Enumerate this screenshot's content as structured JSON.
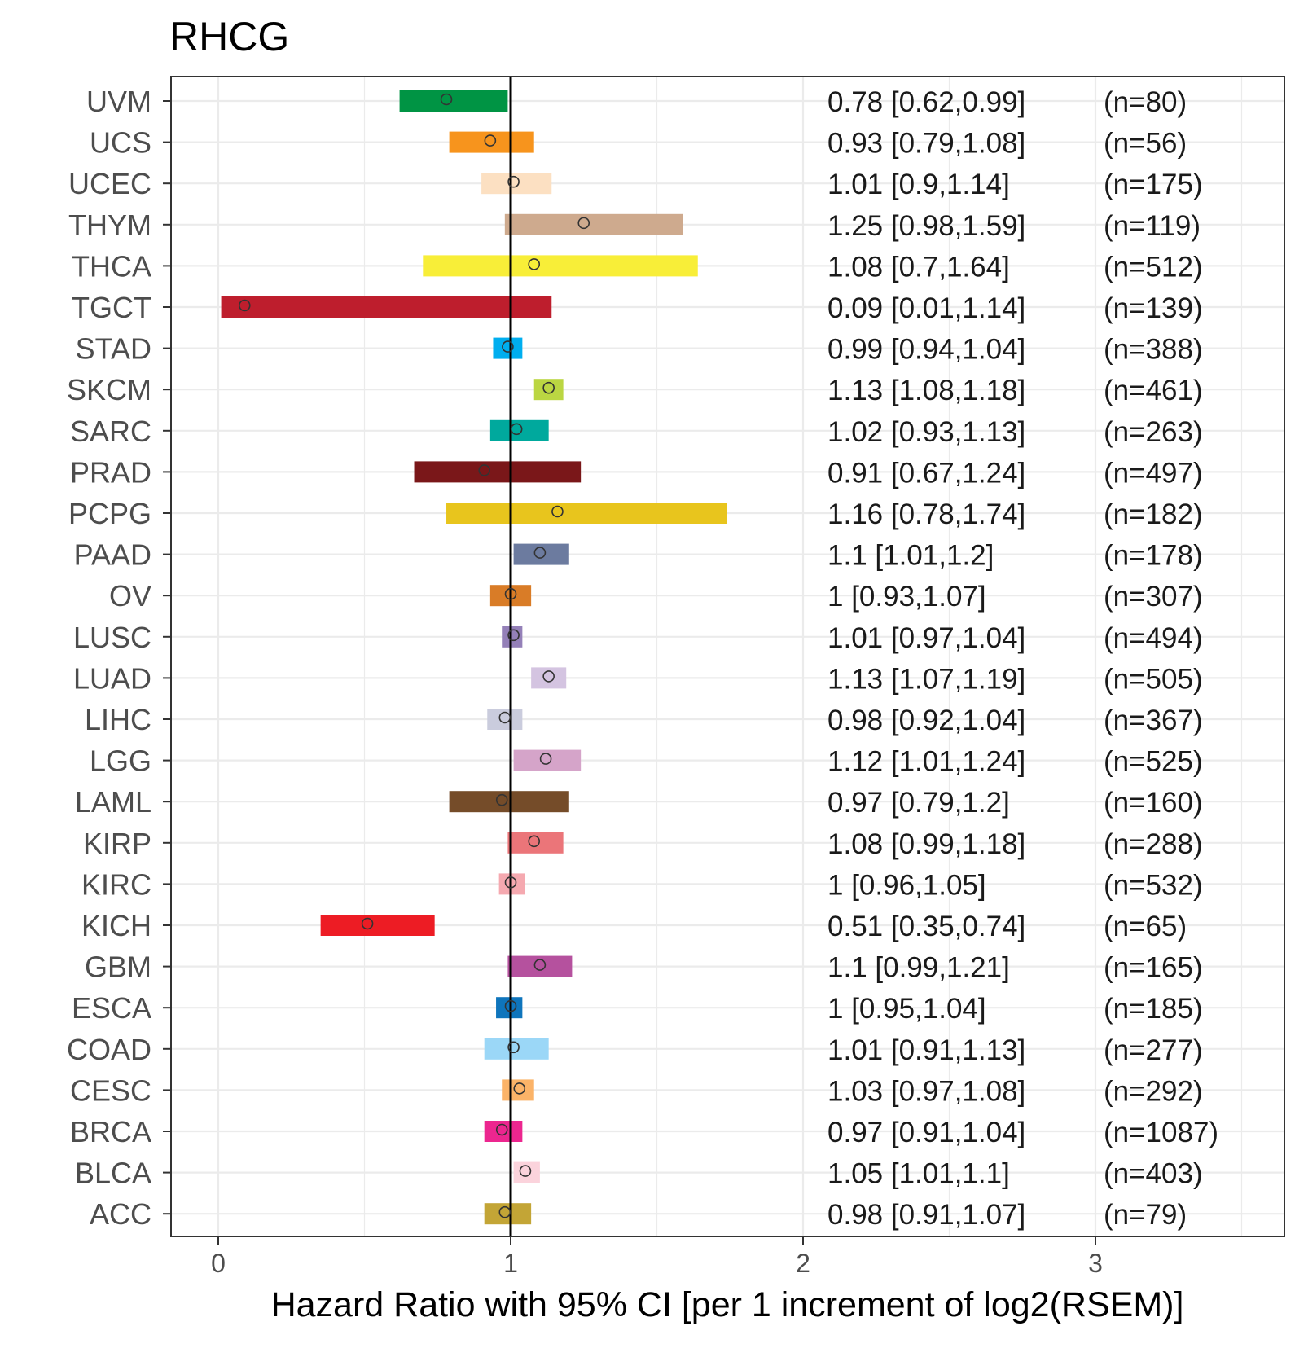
{
  "chart_data": {
    "type": "forest",
    "title": "RHCG",
    "xlabel": "Hazard Ratio with 95% CI [per 1 increment of log2(RSEM)]",
    "ylabel": "",
    "xlim": [
      -0.17,
      3.5
    ],
    "x_ticks": [
      0,
      1,
      2,
      3
    ],
    "x_tick_labels": [
      "0",
      "1",
      "2",
      "3"
    ],
    "reference_line": 1,
    "grid": true,
    "legend": "none",
    "rows": [
      {
        "label": "UVM",
        "hr": 0.78,
        "lower": 0.62,
        "upper": 0.99,
        "ci_text": "0.78 [0.62,0.99]",
        "n_text": "(n=80)",
        "color": "#009444"
      },
      {
        "label": "UCS",
        "hr": 0.93,
        "lower": 0.79,
        "upper": 1.08,
        "ci_text": "0.93 [0.79,1.08]",
        "n_text": "(n=56)",
        "color": "#F7941D"
      },
      {
        "label": "UCEC",
        "hr": 1.01,
        "lower": 0.9,
        "upper": 1.14,
        "ci_text": "1.01 [0.9,1.14]",
        "n_text": "(n=175)",
        "color": "#FCE0C2"
      },
      {
        "label": "THYM",
        "hr": 1.25,
        "lower": 0.98,
        "upper": 1.59,
        "ci_text": "1.25 [0.98,1.59]",
        "n_text": "(n=119)",
        "color": "#CEAA8E"
      },
      {
        "label": "THCA",
        "hr": 1.08,
        "lower": 0.7,
        "upper": 1.64,
        "ci_text": "1.08 [0.7,1.64]",
        "n_text": "(n=512)",
        "color": "#F8EE38"
      },
      {
        "label": "TGCT",
        "hr": 0.09,
        "lower": 0.01,
        "upper": 1.14,
        "ci_text": "0.09 [0.01,1.14]",
        "n_text": "(n=139)",
        "color": "#BE1E2D"
      },
      {
        "label": "STAD",
        "hr": 0.99,
        "lower": 0.94,
        "upper": 1.04,
        "ci_text": "0.99 [0.94,1.04]",
        "n_text": "(n=388)",
        "color": "#00AEEF"
      },
      {
        "label": "SKCM",
        "hr": 1.13,
        "lower": 1.08,
        "upper": 1.18,
        "ci_text": "1.13 [1.08,1.18]",
        "n_text": "(n=461)",
        "color": "#BBD642"
      },
      {
        "label": "SARC",
        "hr": 1.02,
        "lower": 0.93,
        "upper": 1.13,
        "ci_text": "1.02 [0.93,1.13]",
        "n_text": "(n=263)",
        "color": "#00A99D"
      },
      {
        "label": "PRAD",
        "hr": 0.91,
        "lower": 0.67,
        "upper": 1.24,
        "ci_text": "0.91 [0.67,1.24]",
        "n_text": "(n=497)",
        "color": "#7A1719"
      },
      {
        "label": "PCPG",
        "hr": 1.16,
        "lower": 0.78,
        "upper": 1.74,
        "ci_text": "1.16 [0.78,1.74]",
        "n_text": "(n=182)",
        "color": "#E8C51D"
      },
      {
        "label": "PAAD",
        "hr": 1.1,
        "lower": 1.01,
        "upper": 1.2,
        "ci_text": "1.1 [1.01,1.2]",
        "n_text": "(n=178)",
        "color": "#6C7B9F"
      },
      {
        "label": "OV",
        "hr": 1,
        "lower": 0.93,
        "upper": 1.07,
        "ci_text": "1 [0.93,1.07]",
        "n_text": "(n=307)",
        "color": "#D97C27"
      },
      {
        "label": "LUSC",
        "hr": 1.01,
        "lower": 0.97,
        "upper": 1.04,
        "ci_text": "1.01 [0.97,1.04]",
        "n_text": "(n=494)",
        "color": "#9480B8"
      },
      {
        "label": "LUAD",
        "hr": 1.13,
        "lower": 1.07,
        "upper": 1.19,
        "ci_text": "1.13 [1.07,1.19]",
        "n_text": "(n=505)",
        "color": "#D4C4E1"
      },
      {
        "label": "LIHC",
        "hr": 0.98,
        "lower": 0.92,
        "upper": 1.04,
        "ci_text": "0.98 [0.92,1.04]",
        "n_text": "(n=367)",
        "color": "#CACCDD"
      },
      {
        "label": "LGG",
        "hr": 1.12,
        "lower": 1.01,
        "upper": 1.24,
        "ci_text": "1.12 [1.01,1.24]",
        "n_text": "(n=525)",
        "color": "#D5A4C9"
      },
      {
        "label": "LAML",
        "hr": 0.97,
        "lower": 0.79,
        "upper": 1.2,
        "ci_text": "0.97 [0.79,1.2]",
        "n_text": "(n=160)",
        "color": "#754C29"
      },
      {
        "label": "KIRP",
        "hr": 1.08,
        "lower": 0.99,
        "upper": 1.18,
        "ci_text": "1.08 [0.99,1.18]",
        "n_text": "(n=288)",
        "color": "#EB7579"
      },
      {
        "label": "KIRC",
        "hr": 1,
        "lower": 0.96,
        "upper": 1.05,
        "ci_text": "1 [0.96,1.05]",
        "n_text": "(n=532)",
        "color": "#F5A9B0"
      },
      {
        "label": "KICH",
        "hr": 0.51,
        "lower": 0.35,
        "upper": 0.74,
        "ci_text": "0.51 [0.35,0.74]",
        "n_text": "(n=65)",
        "color": "#ED1C24"
      },
      {
        "label": "GBM",
        "hr": 1.1,
        "lower": 0.99,
        "upper": 1.21,
        "ci_text": "1.1 [0.99,1.21]",
        "n_text": "(n=165)",
        "color": "#B5519E"
      },
      {
        "label": "ESCA",
        "hr": 1,
        "lower": 0.95,
        "upper": 1.04,
        "ci_text": "1 [0.95,1.04]",
        "n_text": "(n=185)",
        "color": "#0F75BC"
      },
      {
        "label": "COAD",
        "hr": 1.01,
        "lower": 0.91,
        "upper": 1.13,
        "ci_text": "1.01 [0.91,1.13]",
        "n_text": "(n=277)",
        "color": "#9BD7F7"
      },
      {
        "label": "CESC",
        "hr": 1.03,
        "lower": 0.97,
        "upper": 1.08,
        "ci_text": "1.03 [0.97,1.08]",
        "n_text": "(n=292)",
        "color": "#FBB368"
      },
      {
        "label": "BRCA",
        "hr": 0.97,
        "lower": 0.91,
        "upper": 1.04,
        "ci_text": "0.97 [0.91,1.04]",
        "n_text": "(n=1087)",
        "color": "#EC268F"
      },
      {
        "label": "BLCA",
        "hr": 1.05,
        "lower": 1.01,
        "upper": 1.1,
        "ci_text": "1.05 [1.01,1.1]",
        "n_text": "(n=403)",
        "color": "#FBD3DC"
      },
      {
        "label": "ACC",
        "hr": 0.98,
        "lower": 0.91,
        "upper": 1.07,
        "ci_text": "0.98 [0.91,1.07]",
        "n_text": "(n=79)",
        "color": "#C3A536"
      }
    ]
  }
}
